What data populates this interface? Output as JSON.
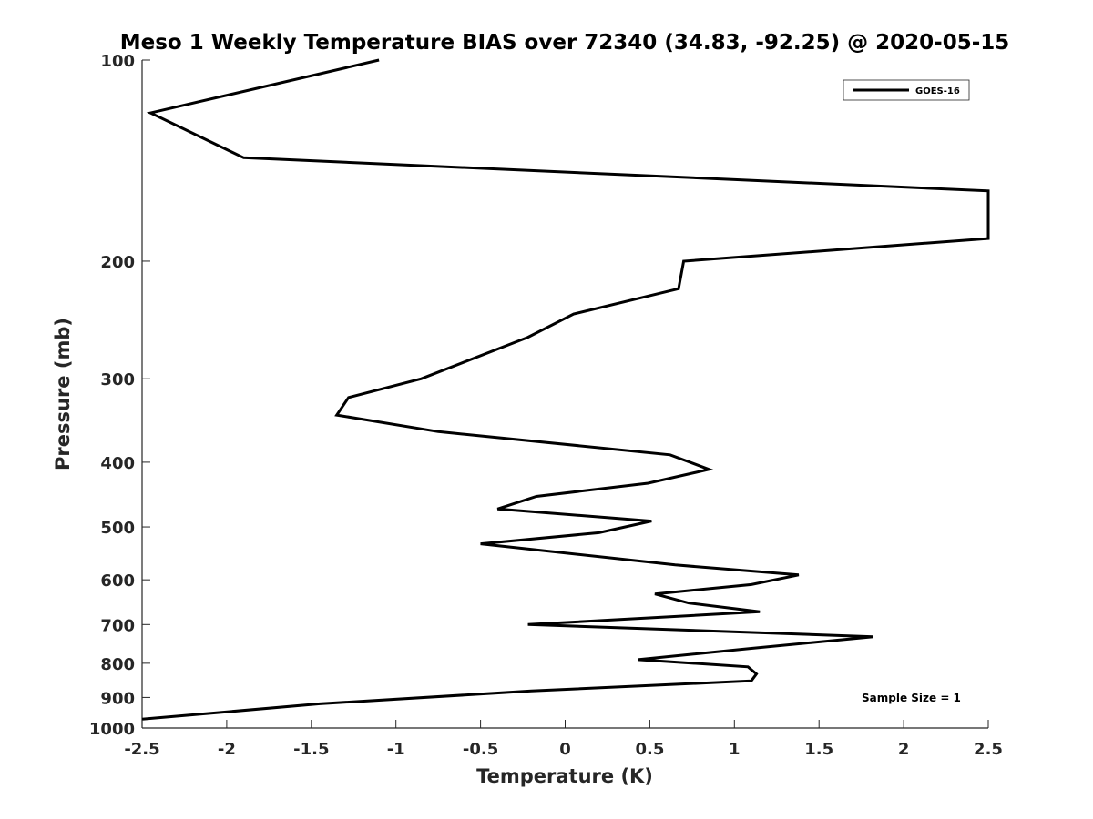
{
  "chart_data": {
    "type": "line",
    "title": "Meso 1 Weekly Temperature BIAS over 72340 (34.83, -92.25) @ 2020-05-15",
    "xlabel": "Temperature (K)",
    "ylabel": "Pressure (mb)",
    "xlim": [
      -2.5,
      2.5
    ],
    "ylim": [
      100,
      1000
    ],
    "y_scale": "log",
    "y_reversed": true,
    "grid": false,
    "legend_position": "top-right",
    "x_ticks": [
      "-2.5",
      "-2",
      "-1.5",
      "-1",
      "-0.5",
      "0",
      "0.5",
      "1",
      "1.5",
      "2",
      "2.5"
    ],
    "x_tick_values": [
      -2.5,
      -2,
      -1.5,
      -1,
      -0.5,
      0,
      0.5,
      1,
      1.5,
      2,
      2.5
    ],
    "y_ticks": [
      "100",
      "200",
      "300",
      "400",
      "500",
      "600",
      "700",
      "800",
      "900",
      "1000"
    ],
    "y_tick_values": [
      100,
      200,
      300,
      400,
      500,
      600,
      700,
      800,
      900,
      1000
    ],
    "series": [
      {
        "name": "GOES-16",
        "color": "#000000",
        "points": [
          [
            -1.1,
            100
          ],
          [
            -2.45,
            120
          ],
          [
            -1.9,
            140
          ],
          [
            2.5,
            157
          ],
          [
            2.5,
            185
          ],
          [
            0.7,
            200
          ],
          [
            0.67,
            220
          ],
          [
            0.05,
            240
          ],
          [
            -0.22,
            260
          ],
          [
            -0.85,
            300
          ],
          [
            -1.28,
            320
          ],
          [
            -1.35,
            340
          ],
          [
            -0.75,
            360
          ],
          [
            0.62,
            390
          ],
          [
            0.85,
            410
          ],
          [
            0.49,
            430
          ],
          [
            -0.17,
            450
          ],
          [
            -0.4,
            470
          ],
          [
            0.51,
            490
          ],
          [
            0.2,
            510
          ],
          [
            -0.5,
            530
          ],
          [
            0.65,
            570
          ],
          [
            1.38,
            590
          ],
          [
            1.1,
            610
          ],
          [
            0.53,
            630
          ],
          [
            0.73,
            650
          ],
          [
            1.15,
            670
          ],
          [
            -0.22,
            700
          ],
          [
            1.82,
            730
          ],
          [
            1.1,
            760
          ],
          [
            0.43,
            790
          ],
          [
            1.08,
            810
          ],
          [
            1.13,
            830
          ],
          [
            1.1,
            850
          ],
          [
            -0.2,
            880
          ],
          [
            -1.45,
            920
          ],
          [
            -2.5,
            970
          ]
        ]
      }
    ],
    "annotation": "Sample Size = 1"
  }
}
